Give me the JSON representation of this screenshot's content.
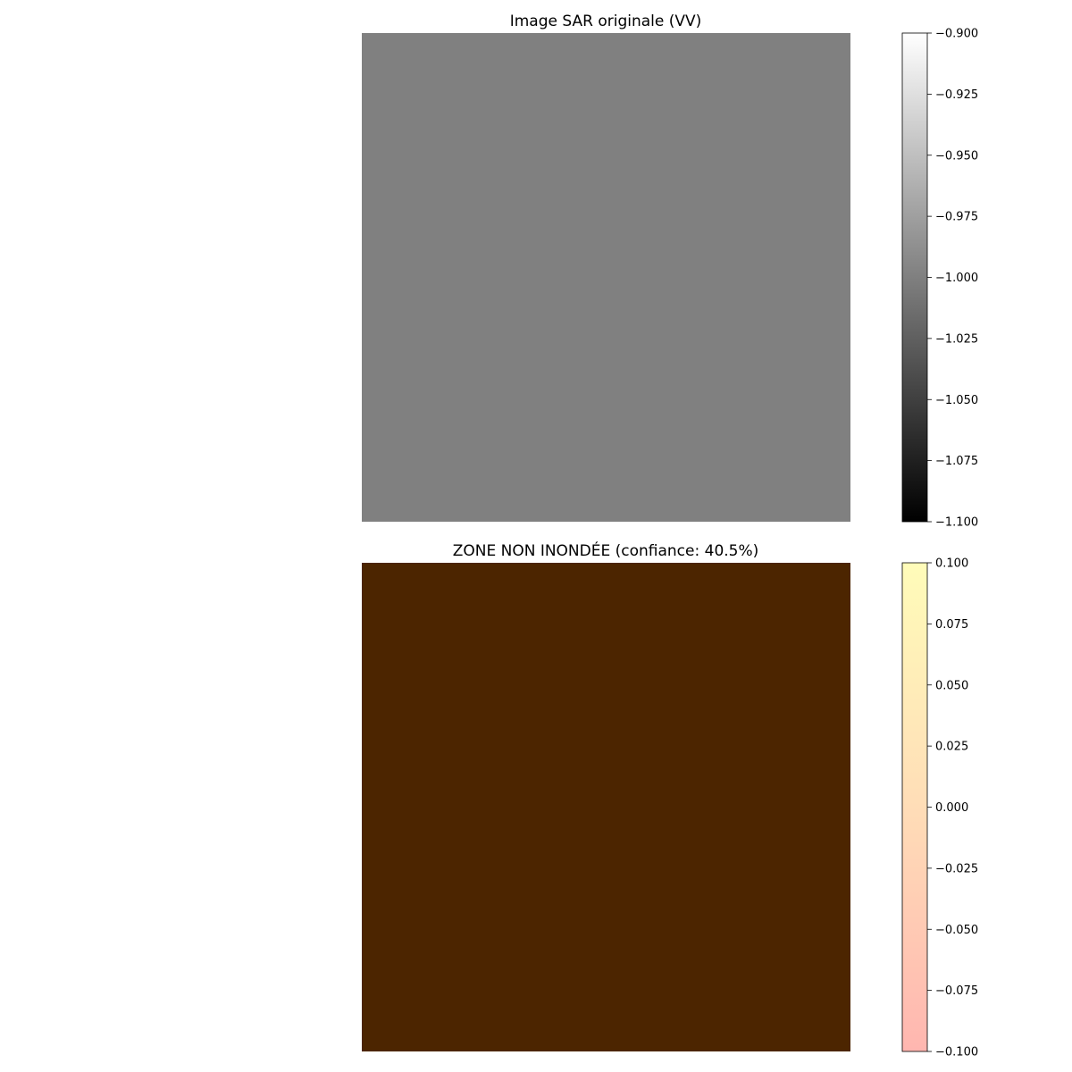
{
  "chart_data": [
    {
      "type": "heatmap",
      "title": "Image SAR originale (VV)",
      "grid": false,
      "axes": "off",
      "image": {
        "description_value": -1.0,
        "fill_color": "#808080"
      },
      "colorbar": {
        "colormap": "gray",
        "range": [
          -1.1,
          -0.9
        ],
        "ticks": [
          -0.9,
          -0.925,
          -0.95,
          -0.975,
          -1.0,
          -1.025,
          -1.05,
          -1.075,
          -1.1
        ],
        "tick_labels": [
          "−0.900",
          "−0.925",
          "−0.950",
          "−0.975",
          "−1.000",
          "−1.025",
          "−1.050",
          "−1.075",
          "−1.100"
        ],
        "color_low": "#000000",
        "color_high": "#ffffff"
      }
    },
    {
      "type": "heatmap",
      "title": "ZONE NON INONDÉE (confiance: 40.5%)",
      "grid": false,
      "axes": "off",
      "image": {
        "value": 0.0,
        "fill_color": "#4c2500"
      },
      "colorbar": {
        "colormap": "overlay",
        "range": [
          -0.1,
          0.1
        ],
        "ticks": [
          0.1,
          0.075,
          0.05,
          0.025,
          0.0,
          -0.025,
          -0.05,
          -0.075,
          -0.1
        ],
        "tick_labels": [
          "0.100",
          "0.075",
          "0.050",
          "0.025",
          "0.000",
          "−0.025",
          "−0.050",
          "−0.075",
          "−0.100"
        ],
        "color_low": "#ffb6b0",
        "color_mid": "#ffddb7",
        "color_high": "#fffcb9"
      }
    }
  ]
}
